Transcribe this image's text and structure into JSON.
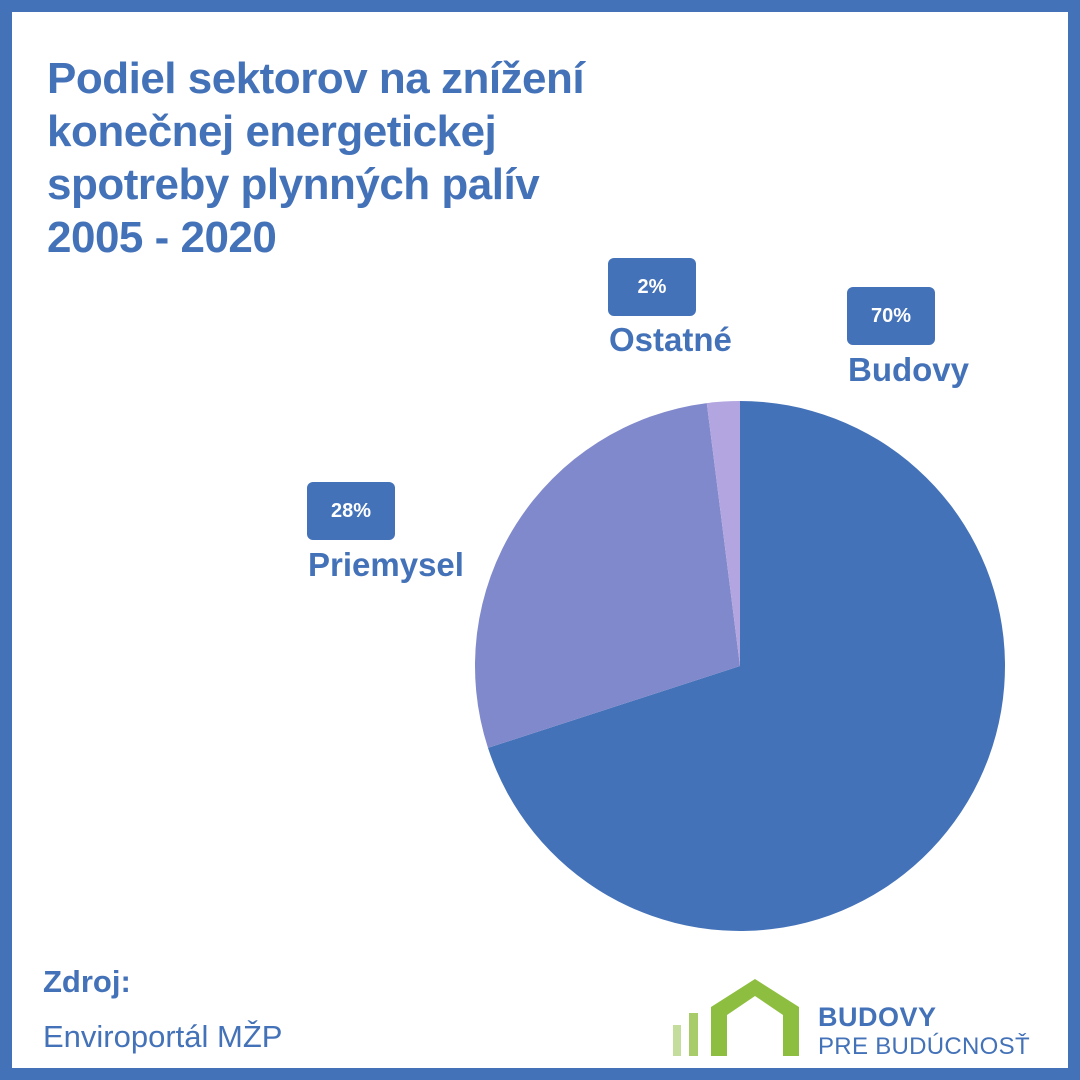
{
  "title_lines": [
    "Podiel sektorov na znížení",
    "konečnej energetickej",
    "spotreby plynných palív",
    "2005 - 2020"
  ],
  "chart_data": {
    "type": "pie",
    "title": "Podiel sektorov na znížení konečnej energetickej spotreby plynných palív 2005 - 2020",
    "slices": [
      {
        "label": "Budovy",
        "value": 70,
        "value_label": "70%",
        "color": "#4472b8"
      },
      {
        "label": "Priemysel",
        "value": 28,
        "value_label": "28%",
        "color": "#8089cb"
      },
      {
        "label": "Ostatné",
        "value": 2,
        "value_label": "2%",
        "color": "#b3a6e0"
      }
    ]
  },
  "source": {
    "label": "Zdroj:",
    "value": "Enviroportál MŽP"
  },
  "logo": {
    "line1": "BUDOVY",
    "line2": "PRE BUDÚCNOSŤ",
    "color_green": "#8dbe3f",
    "color_blue": "#4472b8"
  }
}
